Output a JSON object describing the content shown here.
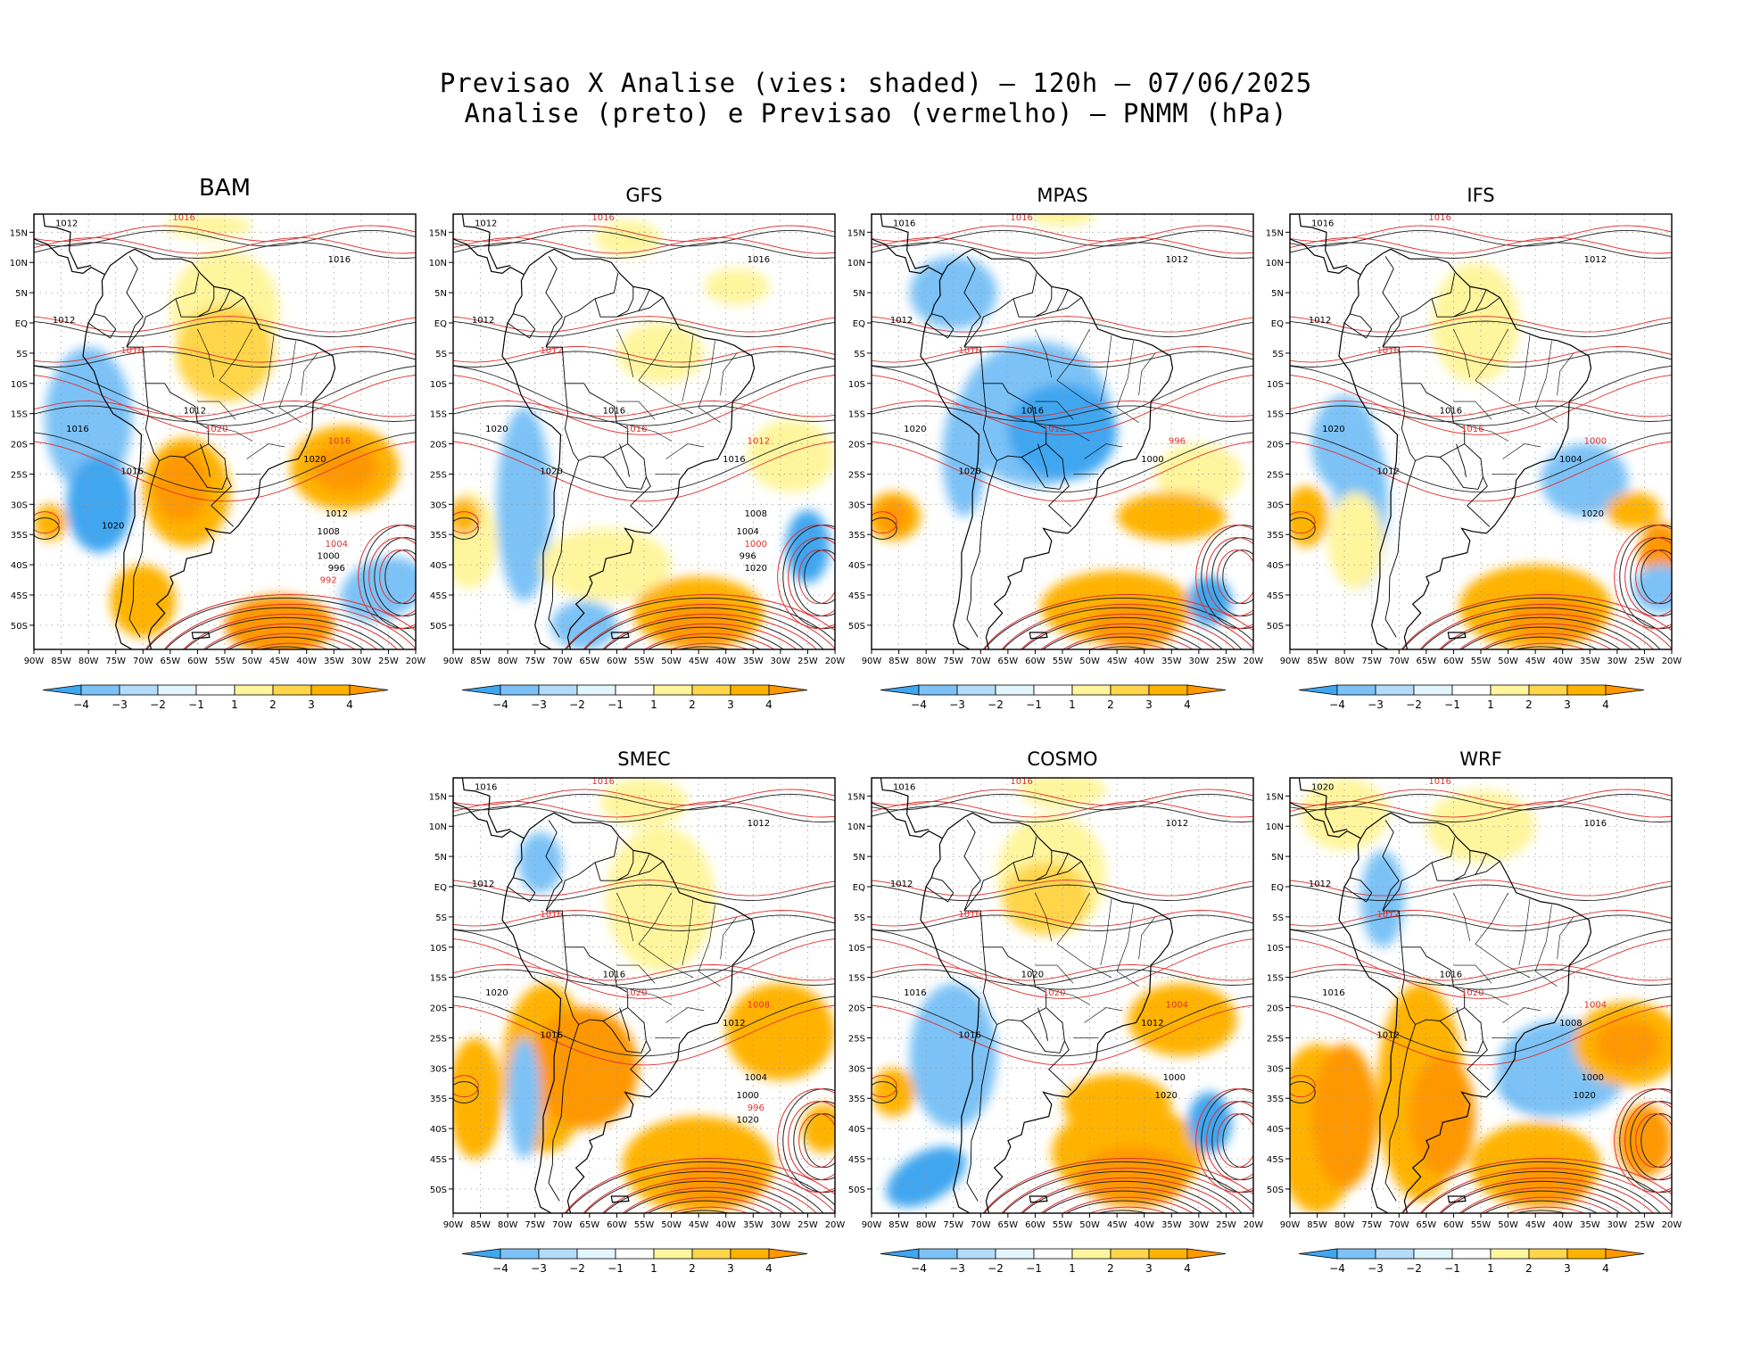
{
  "title": {
    "line1": "Previsao X Analise (vies: shaded) – 120h – 07/06/2025",
    "line2": "Analise (preto) e Previsao (vermelho) – PNMM (hPa)"
  },
  "chart_data": {
    "type": "heatmap",
    "description_units": "hPa",
    "lon_ticks": [
      "90W",
      "85W",
      "80W",
      "75W",
      "70W",
      "65W",
      "60W",
      "55W",
      "50W",
      "45W",
      "40W",
      "35W",
      "30W",
      "25W",
      "20W"
    ],
    "lat_ticks": [
      "15N",
      "10N",
      "5N",
      "EQ",
      "5S",
      "10S",
      "15S",
      "20S",
      "25S",
      "30S",
      "35S",
      "40S",
      "45S",
      "50S"
    ],
    "lon_range": [
      -90,
      -20
    ],
    "lat_range": [
      -54,
      18
    ],
    "colorbar": {
      "labels": [
        "-4",
        "-3",
        "-2",
        "-1",
        "1",
        "2",
        "3",
        "4"
      ],
      "colors": [
        "#3fa6f0",
        "#7cc2f7",
        "#b3dcfa",
        "#e4f6fd",
        "#ffffff",
        "#fff59d",
        "#ffd54a",
        "#ffb300",
        "#ff9800"
      ]
    },
    "panels": [
      {
        "name": "BAM",
        "contour_labels": [
          "1012",
          "1016",
          "1016",
          "1012",
          "1016",
          "1012",
          "1016",
          "1020",
          "1016",
          "1020",
          "1016",
          "1012",
          "1008",
          "1004",
          "1000",
          "996",
          "992",
          "1020"
        ]
      },
      {
        "name": "GFS",
        "contour_labels": [
          "1012",
          "1016",
          "1016",
          "1012",
          "1012",
          "1016",
          "1020",
          "1016",
          "1020",
          "1016",
          "1012",
          "1008",
          "1004",
          "1000",
          "996",
          "1020"
        ]
      },
      {
        "name": "MPAS",
        "contour_labels": [
          "1016",
          "1016",
          "1012",
          "1012",
          "1016",
          "1016",
          "1020",
          "1012",
          "1020",
          "1000",
          "996"
        ]
      },
      {
        "name": "IFS",
        "contour_labels": [
          "1016",
          "1016",
          "1012",
          "1012",
          "1016",
          "1016",
          "1020",
          "1016",
          "1012",
          "1004",
          "1000",
          "1020"
        ]
      },
      {
        "name": "SMEC",
        "contour_labels": [
          "1016",
          "1016",
          "1012",
          "1012",
          "1016",
          "1016",
          "1020",
          "1020",
          "1016",
          "1012",
          "1008",
          "1004",
          "1000",
          "996",
          "1020"
        ]
      },
      {
        "name": "COSMO",
        "contour_labels": [
          "1016",
          "1016",
          "1012",
          "1012",
          "1016",
          "1020",
          "1016",
          "1020",
          "1016",
          "1012",
          "1004",
          "1000",
          "1020"
        ]
      },
      {
        "name": "WRF",
        "contour_labels": [
          "1020",
          "1016",
          "1016",
          "1012",
          "1012",
          "1016",
          "1016",
          "1020",
          "1012",
          "1008",
          "1004",
          "1000",
          "1020"
        ]
      }
    ]
  }
}
